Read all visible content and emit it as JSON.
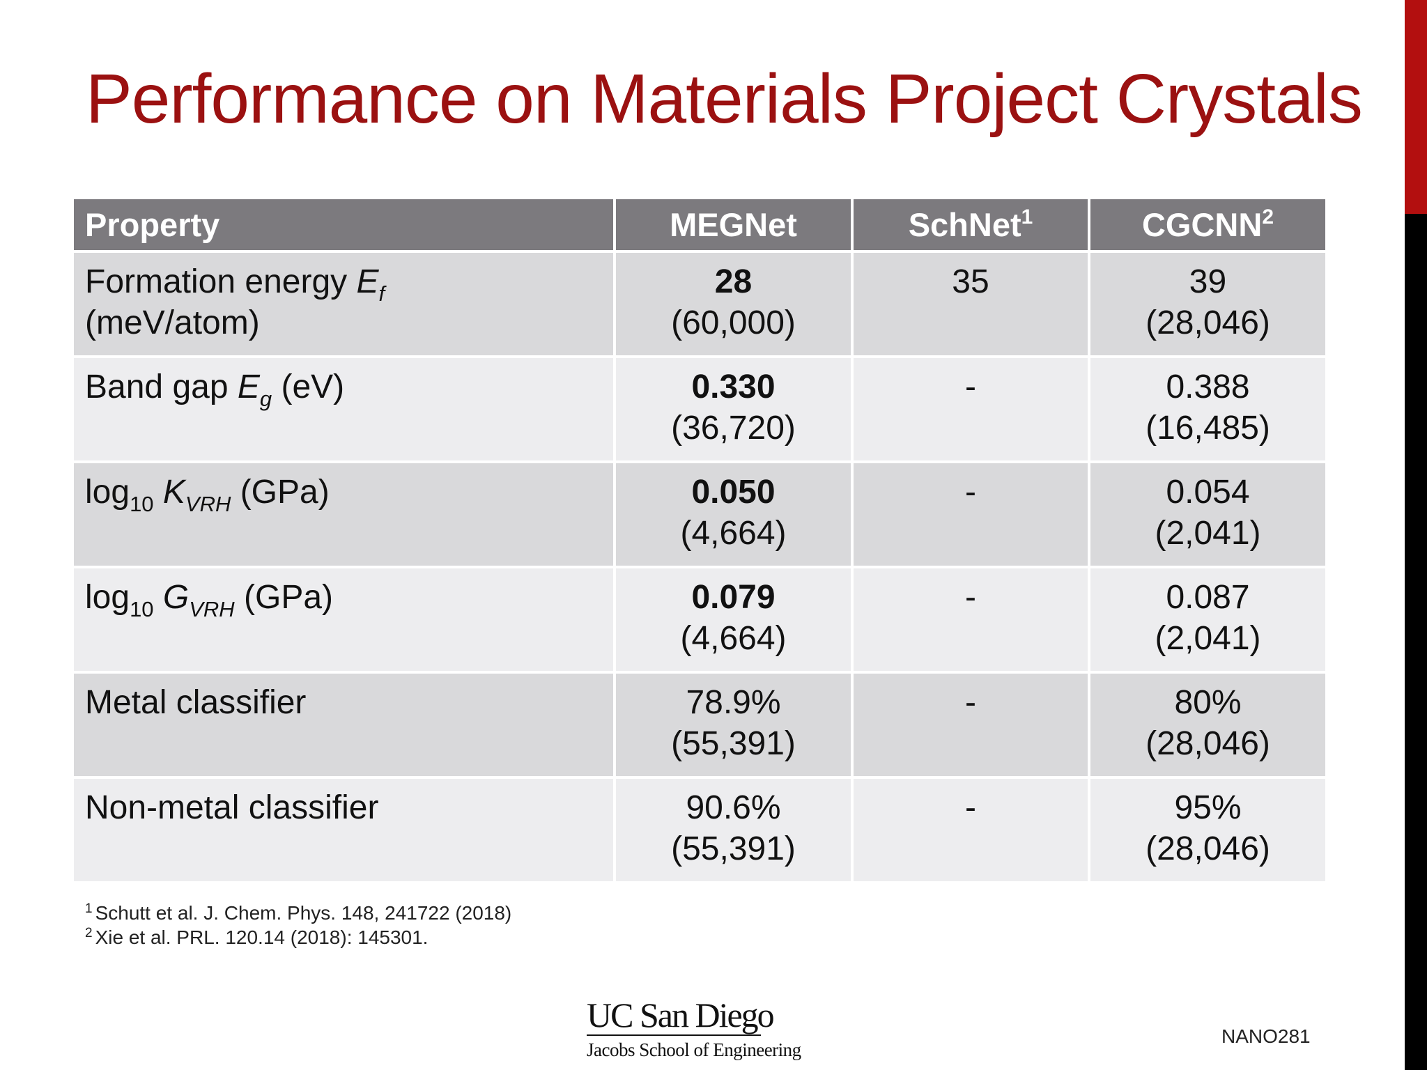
{
  "slide": {
    "title": "Performance on Materials Project Crystals",
    "colors": {
      "title": "#9b1111",
      "accent_top": "#b30f0f",
      "accent_bottom": "#000000",
      "header_bg": "#7c7a7e"
    }
  },
  "table": {
    "header": {
      "property": "Property",
      "megnet": "MEGNet",
      "schnet": "SchNet",
      "schnet_ref": "1",
      "cgcnn": "CGCNN",
      "cgcnn_ref": "2"
    },
    "rows": [
      {
        "label": "Formation energy ",
        "symbol": "E",
        "symbol_sub": "f",
        "unit": "(meV/atom)",
        "megnet_value": "28",
        "megnet_count": "(60,000)",
        "schnet_value": "35",
        "cgcnn_value": "39",
        "cgcnn_count": "(28,046)"
      },
      {
        "label": "Band gap ",
        "symbol": "E",
        "symbol_sub": "g",
        "unit": " (eV)",
        "megnet_value": "0.330",
        "megnet_count": "(36,720)",
        "schnet_value": "-",
        "cgcnn_value": "0.388",
        "cgcnn_count": "(16,485)"
      },
      {
        "label": "log",
        "label_sub": "10",
        "symbol": "K",
        "symbol_sub": "VRH",
        "unit": " (GPa)",
        "megnet_value": "0.050",
        "megnet_count": "(4,664)",
        "schnet_value": "-",
        "cgcnn_value": "0.054",
        "cgcnn_count": "(2,041)"
      },
      {
        "label": "log",
        "label_sub": "10",
        "symbol": "G",
        "symbol_sub": "VRH",
        "unit": " (GPa)",
        "megnet_value": "0.079",
        "megnet_count": "(4,664)",
        "schnet_value": "-",
        "cgcnn_value": "0.087",
        "cgcnn_count": "(2,041)"
      },
      {
        "label": "Metal classifier",
        "megnet_value": "78.9%",
        "megnet_count": "(55,391)",
        "schnet_value": "-",
        "cgcnn_value": "80%",
        "cgcnn_count": "(28,046)"
      },
      {
        "label": "Non-metal classifier",
        "megnet_value": "90.6%",
        "megnet_count": "(55,391)",
        "schnet_value": "-",
        "cgcnn_value": "95%",
        "cgcnn_count": "(28,046)"
      }
    ]
  },
  "footnotes": [
    {
      "num": "1",
      "text": "Schutt et al. J. Chem. Phys. 148, 241722 (2018)"
    },
    {
      "num": "2",
      "text": "Xie et al. PRL. 120.14 (2018): 145301."
    }
  ],
  "logo": {
    "main": "UC San Diego",
    "sub": "Jacobs School of Engineering"
  },
  "course_code": "NANO281"
}
